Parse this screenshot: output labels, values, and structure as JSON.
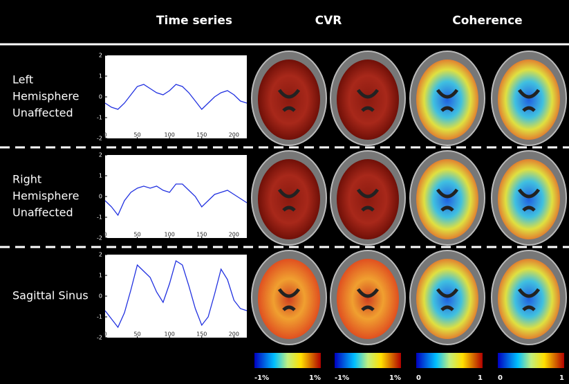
{
  "headers": [
    "Time series",
    "CVR",
    "Coherence"
  ],
  "colorbars": [
    {
      "min_label": "-1%",
      "max_label": "1%"
    },
    {
      "min_label": "-1%",
      "max_label": "1%"
    },
    {
      "min_label": "0",
      "max_label": "1"
    },
    {
      "min_label": "0",
      "max_label": "1"
    }
  ],
  "chart_data": [
    {
      "type": "line",
      "row_label": [
        "Left",
        "Hemisphere",
        "Unaffected"
      ],
      "x": [
        0,
        10,
        20,
        30,
        40,
        50,
        60,
        70,
        80,
        90,
        100,
        110,
        120,
        130,
        140,
        150,
        160,
        170,
        180,
        190,
        200,
        210,
        220
      ],
      "series": [
        {
          "color": "#2030e0",
          "values": [
            -0.3,
            -0.5,
            -0.6,
            -0.3,
            0.1,
            0.5,
            0.6,
            0.4,
            0.2,
            0.1,
            0.3,
            0.6,
            0.5,
            0.2,
            -0.2,
            -0.6,
            -0.3,
            0.0,
            0.2,
            0.3,
            0.1,
            -0.2,
            -0.3
          ]
        }
      ],
      "xlim": [
        0,
        220
      ],
      "ylim": [
        -2,
        2
      ],
      "xticks": [
        0,
        50,
        100,
        150,
        200
      ],
      "yticks": [
        -2,
        -1,
        0,
        1,
        2
      ]
    },
    {
      "type": "line",
      "row_label": [
        "Right",
        "Hemisphere",
        "Unaffected"
      ],
      "x": [
        0,
        10,
        20,
        30,
        40,
        50,
        60,
        70,
        80,
        90,
        100,
        110,
        120,
        130,
        140,
        150,
        160,
        170,
        180,
        190,
        200,
        210,
        220
      ],
      "series": [
        {
          "color": "#2030e0",
          "values": [
            -0.2,
            -0.5,
            -0.9,
            -0.2,
            0.2,
            0.4,
            0.5,
            0.4,
            0.5,
            0.3,
            0.2,
            0.6,
            0.6,
            0.3,
            0.0,
            -0.5,
            -0.2,
            0.1,
            0.2,
            0.3,
            0.1,
            -0.1,
            -0.3
          ]
        }
      ],
      "xlim": [
        0,
        220
      ],
      "ylim": [
        -2,
        2
      ],
      "xticks": [
        0,
        50,
        100,
        150,
        200
      ],
      "yticks": [
        -2,
        -1,
        0,
        1,
        2
      ]
    },
    {
      "type": "line",
      "row_label": [
        "Sagittal Sinus"
      ],
      "x": [
        0,
        10,
        20,
        30,
        40,
        50,
        60,
        70,
        80,
        90,
        100,
        110,
        120,
        130,
        140,
        150,
        160,
        170,
        180,
        190,
        200,
        210,
        220
      ],
      "series": [
        {
          "color": "#2030e0",
          "values": [
            -0.7,
            -1.1,
            -1.5,
            -0.8,
            0.3,
            1.5,
            1.2,
            0.9,
            0.2,
            -0.3,
            0.6,
            1.7,
            1.5,
            0.5,
            -0.6,
            -1.4,
            -1.0,
            0.1,
            1.3,
            0.8,
            -0.2,
            -0.6,
            -0.7
          ]
        }
      ],
      "xlim": [
        0,
        220
      ],
      "ylim": [
        -2,
        2
      ],
      "xticks": [
        0,
        50,
        100,
        150,
        200
      ],
      "yticks": [
        -2,
        -1,
        0,
        1,
        2
      ]
    }
  ]
}
